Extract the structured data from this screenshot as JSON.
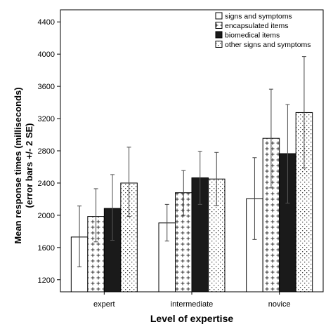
{
  "chart_data": {
    "type": "bar",
    "categories": [
      "expert",
      "intermediate",
      "novice"
    ],
    "series": [
      {
        "name": "signs and symptoms",
        "pattern": "plain",
        "values": [
          1730,
          1905,
          2205
        ],
        "err_low": [
          1360,
          1680,
          1700
        ],
        "err_high": [
          2115,
          2135,
          2715
        ]
      },
      {
        "name": "encapsulated items",
        "pattern": "cross",
        "values": [
          1985,
          2280,
          2955
        ],
        "err_low": [
          1670,
          2000,
          2340
        ],
        "err_high": [
          2330,
          2555,
          3565
        ]
      },
      {
        "name": "biomedical items",
        "pattern": "solid",
        "values": [
          2085,
          2465,
          2765
        ],
        "err_low": [
          1690,
          2135,
          2150
        ],
        "err_high": [
          2505,
          2795,
          3375
        ]
      },
      {
        "name": "other signs and symptoms",
        "pattern": "dots",
        "values": [
          2400,
          2450,
          3275
        ],
        "err_low": [
          1985,
          2120,
          2585
        ],
        "err_high": [
          2845,
          2780,
          3970
        ]
      }
    ],
    "ylim": [
      1050,
      4550
    ],
    "yticks": [
      1200,
      1600,
      2000,
      2400,
      2800,
      3200,
      3600,
      4000,
      4400
    ],
    "ylabel_line1": "Mean response times (milliseconds)",
    "ylabel_line2": "(error bars +/- 2 SE)",
    "xlabel": "Level of expertise",
    "legend_position": "top-right",
    "grid": false
  },
  "colors": {
    "solid_fill": "#1a1a1a",
    "stroke": "#000000",
    "pattern_ink": "#333333"
  }
}
